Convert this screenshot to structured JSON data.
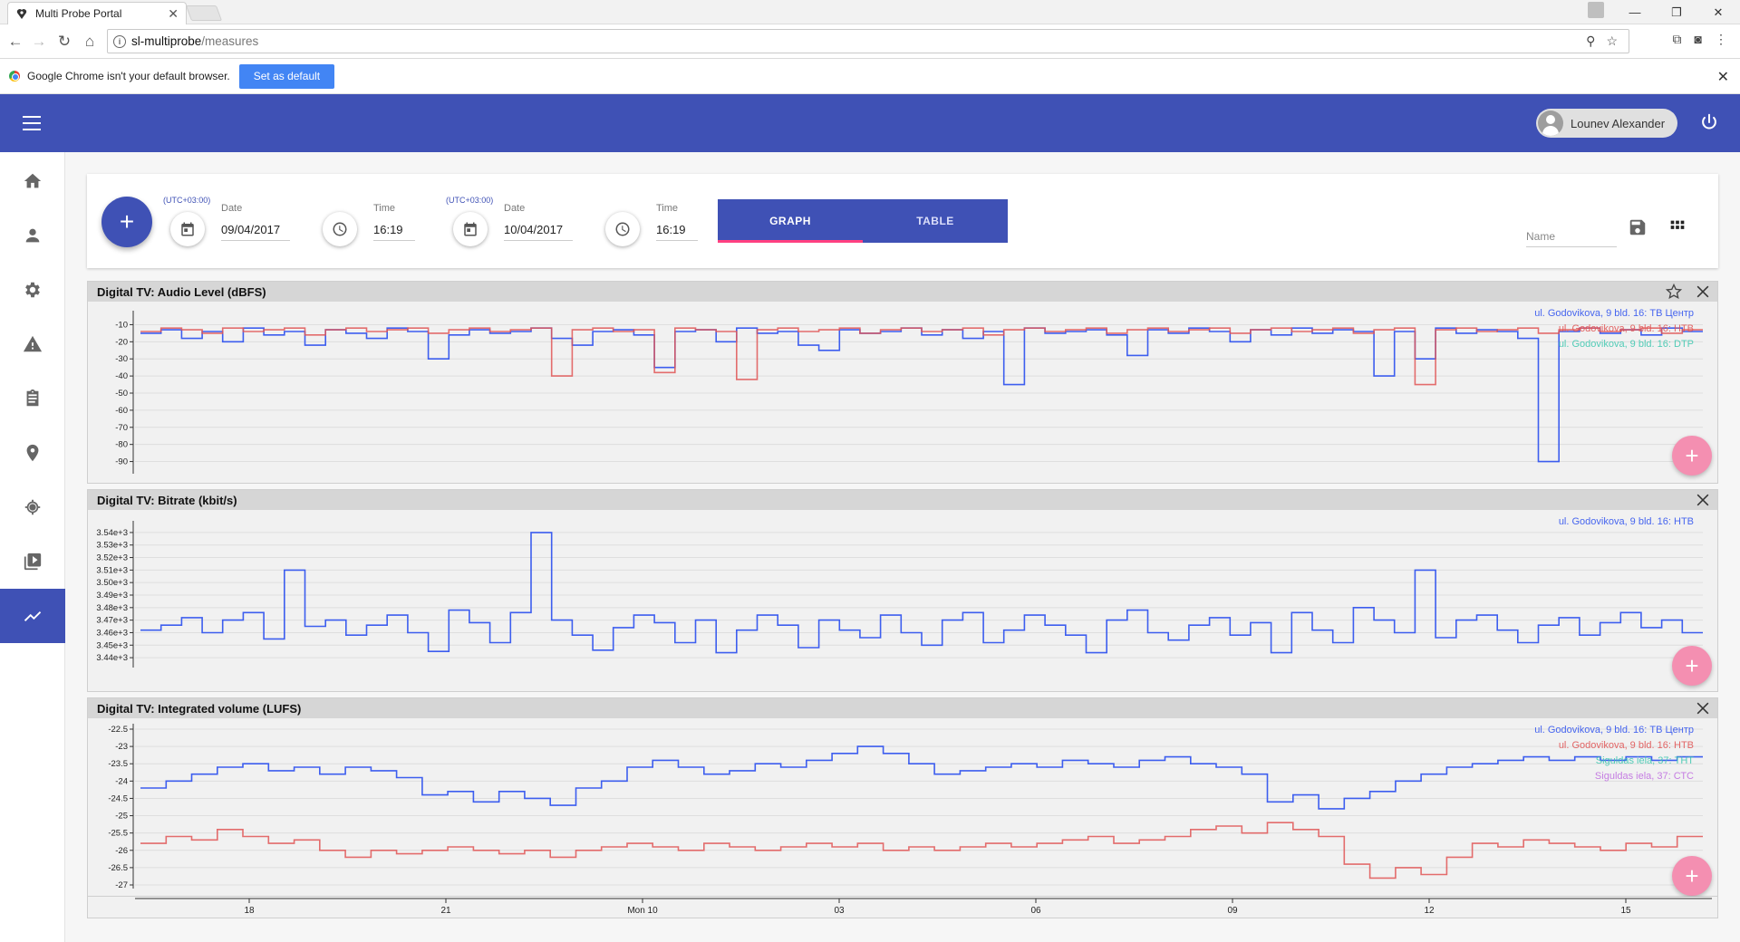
{
  "browser": {
    "tab_title": "Multi Probe Portal",
    "url_host": "sl-multiprobe",
    "url_path": "/measures",
    "infobar_text": "Google Chrome isn't your default browser.",
    "infobar_button": "Set as default"
  },
  "header": {
    "user_name": "Lounev Alexander"
  },
  "toolbar": {
    "from": {
      "tz": "(UTC+03:00)",
      "date_label": "Date",
      "date_value": "09/04/2017",
      "time_label": "Time",
      "time_value": "16:19"
    },
    "to": {
      "tz": "(UTC+03:00)",
      "date_label": "Date",
      "date_value": "10/04/2017",
      "time_label": "Time",
      "time_value": "16:19"
    },
    "tabs": [
      {
        "label": "GRAPH",
        "selected": true
      },
      {
        "label": "TABLE",
        "selected": false
      }
    ],
    "name_placeholder": "Name"
  },
  "colors": {
    "primary": "#3f51b5",
    "accent": "#ff4081",
    "fab_pink": "#f48fb1",
    "series_blue": "#3355ee",
    "series_red": "#e05555",
    "series_teal": "#40c8b0",
    "series_violet": "#c070e0"
  },
  "time_axis": {
    "ticks": [
      "18",
      "21",
      "Mon 10",
      "03",
      "06",
      "09",
      "12",
      "15"
    ]
  },
  "chart_data": [
    {
      "type": "line",
      "title": "Digital TV: Audio Level (dBFS)",
      "ylim": [
        -95,
        -5
      ],
      "yticks": [
        -10,
        -20,
        -30,
        -40,
        -50,
        -60,
        -70,
        -80,
        -90
      ],
      "series": [
        {
          "name": "ul. Godovikova, 9 bld. 16: ТВ Центр",
          "color": "#3355ee",
          "values": [
            -15,
            -13,
            -18,
            -14,
            -20,
            -12,
            -16,
            -14,
            -22,
            -13,
            -15,
            -18,
            -12,
            -14,
            -30,
            -16,
            -13,
            -15,
            -14,
            -12,
            -18,
            -22,
            -14,
            -13,
            -16,
            -35,
            -14,
            -13,
            -20,
            -12,
            -15,
            -14,
            -22,
            -25,
            -13,
            -15,
            -14,
            -12,
            -16,
            -13,
            -18,
            -14,
            -45,
            -12,
            -15,
            -14,
            -13,
            -16,
            -28,
            -13,
            -15,
            -12,
            -14,
            -20,
            -13,
            -16,
            -12,
            -15,
            -13,
            -14,
            -40,
            -14,
            -30,
            -12,
            -15,
            -13,
            -14,
            -18,
            -90,
            -14,
            -12,
            -15,
            -13,
            -16,
            -12,
            -14
          ]
        },
        {
          "name": "ul. Godovikova, 9 bld. 16: НТВ",
          "color": "#e05555",
          "values": [
            -14,
            -12,
            -13,
            -15,
            -12,
            -14,
            -13,
            -12,
            -16,
            -13,
            -12,
            -14,
            -13,
            -12,
            -15,
            -13,
            -12,
            -14,
            -13,
            -12,
            -40,
            -13,
            -12,
            -14,
            -13,
            -38,
            -12,
            -13,
            -14,
            -42,
            -13,
            -12,
            -14,
            -13,
            -12,
            -15,
            -13,
            -12,
            -14,
            -13,
            -12,
            -16,
            -13,
            -12,
            -14,
            -13,
            -12,
            -15,
            -13,
            -12,
            -14,
            -13,
            -12,
            -15,
            -13,
            -12,
            -14,
            -13,
            -12,
            -15,
            -13,
            -12,
            -45,
            -13,
            -12,
            -14,
            -13,
            -12,
            -15,
            -13,
            -12,
            -14,
            -13,
            -12,
            -15,
            -13
          ]
        },
        {
          "name": "ul. Godovikova, 9 bld. 16: DTP",
          "color": "#40c8b0",
          "values": []
        }
      ]
    },
    {
      "type": "line",
      "title": "Digital TV: Bitrate (kbit/s)",
      "ylim": [
        3435,
        3545
      ],
      "yticks": [
        "3.54e+3",
        "3.53e+3",
        "3.52e+3",
        "3.51e+3",
        "3.50e+3",
        "3.49e+3",
        "3.48e+3",
        "3.47e+3",
        "3.46e+3",
        "3.45e+3",
        "3.44e+3"
      ],
      "series": [
        {
          "name": "ul. Godovikova, 9 bld. 16: НТВ",
          "color": "#3355ee",
          "values": [
            3462,
            3466,
            3472,
            3460,
            3470,
            3476,
            3455,
            3510,
            3465,
            3470,
            3458,
            3466,
            3474,
            3460,
            3445,
            3478,
            3468,
            3452,
            3476,
            3540,
            3470,
            3458,
            3446,
            3464,
            3474,
            3468,
            3452,
            3470,
            3444,
            3462,
            3474,
            3466,
            3448,
            3470,
            3462,
            3456,
            3474,
            3460,
            3450,
            3470,
            3476,
            3452,
            3462,
            3474,
            3466,
            3458,
            3444,
            3470,
            3478,
            3460,
            3454,
            3466,
            3472,
            3458,
            3468,
            3444,
            3476,
            3462,
            3452,
            3480,
            3470,
            3460,
            3510,
            3456,
            3470,
            3474,
            3462,
            3452,
            3466,
            3472,
            3458,
            3468,
            3476,
            3464,
            3470,
            3460
          ]
        }
      ]
    },
    {
      "type": "line",
      "title": "Digital TV: Integrated volume (LUFS)",
      "ylim": [
        -27,
        -22.5
      ],
      "yticks": [
        "-22.5",
        "-23",
        "-23.5",
        "-24",
        "-24.5",
        "-25",
        "-25.5",
        "-26",
        "-26.5",
        "-27"
      ],
      "series": [
        {
          "name": "ul. Godovikova, 9 bld. 16: ТВ Центр",
          "color": "#3355ee",
          "values": [
            -24.2,
            -24.0,
            -23.8,
            -23.6,
            -23.5,
            -23.7,
            -23.6,
            -23.8,
            -23.6,
            -23.7,
            -23.9,
            -24.4,
            -24.3,
            -24.6,
            -24.3,
            -24.5,
            -24.7,
            -24.2,
            -24.0,
            -23.6,
            -23.4,
            -23.6,
            -23.8,
            -23.7,
            -23.5,
            -23.6,
            -23.4,
            -23.2,
            -23.0,
            -23.2,
            -23.5,
            -23.8,
            -23.7,
            -23.6,
            -23.5,
            -23.6,
            -23.4,
            -23.5,
            -23.6,
            -23.4,
            -23.3,
            -23.5,
            -23.6,
            -23.8,
            -24.6,
            -24.4,
            -24.8,
            -24.5,
            -24.3,
            -24.0,
            -23.8,
            -23.6,
            -23.5,
            -23.4,
            -23.3,
            -23.4,
            -23.3,
            -23.4,
            -23.3,
            -23.4,
            -23.3
          ]
        },
        {
          "name": "ul. Godovikova, 9 bld. 16: НТВ",
          "color": "#e05555",
          "values": [
            -25.8,
            -25.6,
            -25.7,
            -25.4,
            -25.6,
            -25.8,
            -25.7,
            -26.0,
            -26.2,
            -26.0,
            -26.1,
            -26.0,
            -25.9,
            -26.0,
            -26.1,
            -26.0,
            -26.2,
            -26.0,
            -25.9,
            -25.8,
            -25.9,
            -26.0,
            -25.8,
            -25.9,
            -26.0,
            -25.9,
            -25.8,
            -25.9,
            -25.8,
            -26.0,
            -25.9,
            -26.0,
            -25.9,
            -25.8,
            -25.9,
            -25.8,
            -25.7,
            -25.6,
            -25.8,
            -25.7,
            -25.6,
            -25.4,
            -25.3,
            -25.5,
            -25.2,
            -25.4,
            -25.6,
            -26.4,
            -26.8,
            -26.5,
            -26.7,
            -26.2,
            -25.8,
            -25.9,
            -25.7,
            -25.8,
            -25.9,
            -26.0,
            -25.8,
            -25.9,
            -25.6
          ]
        },
        {
          "name": "Siguldas iela, 37: ТНТ",
          "color": "#40c8b0",
          "values": []
        },
        {
          "name": "Siguldas iela, 37: СТС",
          "color": "#c070e0",
          "values": []
        }
      ]
    }
  ]
}
